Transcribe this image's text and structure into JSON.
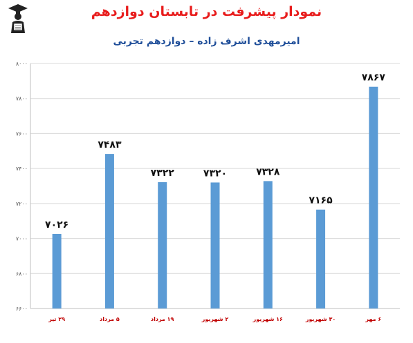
{
  "chart_data": {
    "type": "bar",
    "title": "نمودار پیشرفت در تابستان دوازدهم",
    "subtitle": "امیرمهدی اشرف زاده – دوازدهم تجربی",
    "categories": [
      "۲۹ تیر",
      "۵ مرداد",
      "۱۹ مرداد",
      "۲ شهریور",
      "۱۶ شهریور",
      "۳۰ شهریور",
      "۶ مهر"
    ],
    "values": [
      7026,
      7483,
      7322,
      7320,
      7328,
      7165,
      7867
    ],
    "value_labels": [
      "۷۰۲۶",
      "۷۴۸۳",
      "۷۳۲۲",
      "۷۳۲۰",
      "۷۳۲۸",
      "۷۱۶۵",
      "۷۸۶۷"
    ],
    "ylim": [
      6600,
      8000
    ],
    "yticks": [
      6600,
      6800,
      7000,
      7200,
      7400,
      7600,
      7800,
      8000
    ],
    "ytick_labels": [
      "۶۶۰۰",
      "۶۸۰۰",
      "۷۰۰۰",
      "۷۲۰۰",
      "۷۴۰۰",
      "۷۶۰۰",
      "۷۸۰۰",
      "۸۰۰۰"
    ],
    "grid": true,
    "bar_color": "#5b9bd5",
    "gridline_color": "#d9d9d9",
    "xtick_color": "#c00000"
  }
}
